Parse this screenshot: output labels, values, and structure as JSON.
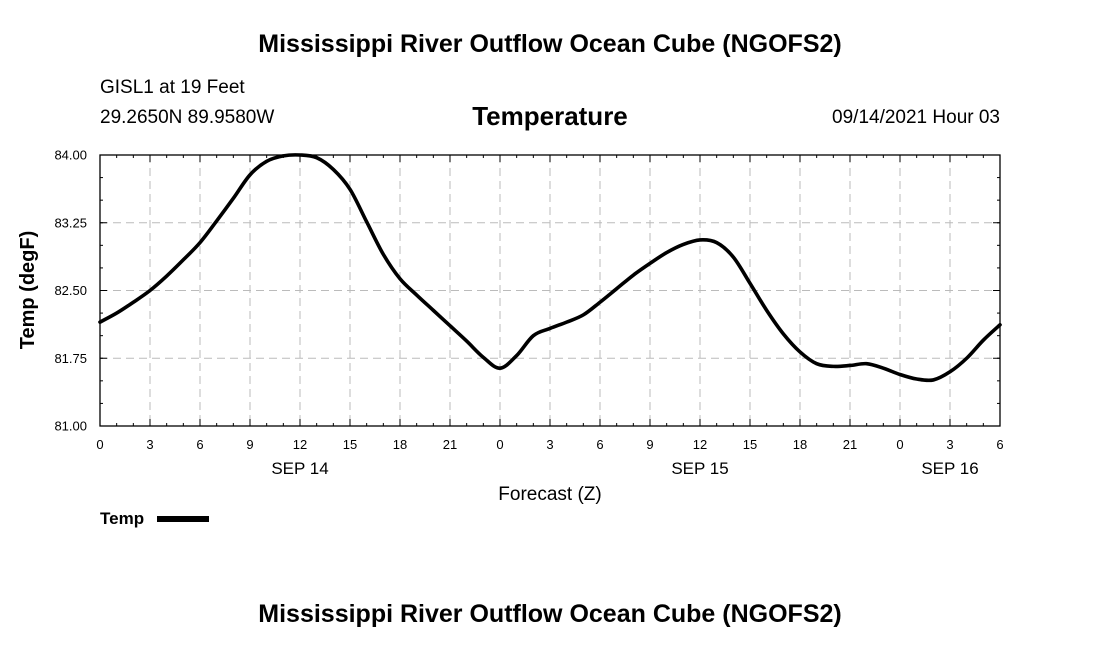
{
  "header": {
    "top_title": "Mississippi River Outflow Ocean Cube (NGOFS2)",
    "station": "GISL1 at 19 Feet",
    "location": "29.2650N  89.9580W",
    "variable": "Temperature",
    "datetime": "09/14/2021 Hour 03"
  },
  "footer": {
    "bottom_title": "Mississippi River Outflow Ocean Cube (NGOFS2)"
  },
  "legend": {
    "label": "Temp",
    "color": "#000000"
  },
  "chart_data": {
    "type": "line",
    "title": "Temperature",
    "xlabel": "Forecast (Z)",
    "ylabel": "Temp (degF)",
    "xlim": [
      0,
      54
    ],
    "ylim": [
      81.0,
      84.0
    ],
    "grid": true,
    "x_tick_values": [
      0,
      3,
      6,
      9,
      12,
      15,
      18,
      21,
      24,
      27,
      30,
      33,
      36,
      39,
      42,
      45,
      48,
      51,
      54
    ],
    "x_tick_labels": [
      "0",
      "3",
      "6",
      "9",
      "12",
      "15",
      "18",
      "21",
      "0",
      "3",
      "6",
      "9",
      "12",
      "15",
      "18",
      "21",
      "0",
      "3",
      "6"
    ],
    "y_tick_values": [
      81.0,
      81.75,
      82.5,
      83.25,
      84.0
    ],
    "y_tick_labels": [
      "81.00",
      "81.75",
      "82.50",
      "83.25",
      "84.00"
    ],
    "date_labels": [
      {
        "x": 12,
        "label": "SEP 14"
      },
      {
        "x": 36,
        "label": "SEP 15"
      },
      {
        "x": 51,
        "label": "SEP 16"
      }
    ],
    "series": [
      {
        "name": "Temp",
        "color": "#000000",
        "x": [
          0,
          1,
          2,
          3,
          4,
          5,
          6,
          7,
          8,
          9,
          10,
          11,
          12,
          13,
          14,
          15,
          16,
          17,
          18,
          19,
          20,
          21,
          22,
          23,
          24,
          25,
          26,
          27,
          28,
          29,
          30,
          31,
          32,
          33,
          34,
          35,
          36,
          37,
          38,
          39,
          40,
          41,
          42,
          43,
          44,
          45,
          46,
          47,
          48,
          49,
          50,
          51,
          52,
          53,
          54
        ],
        "values": [
          82.15,
          82.25,
          82.37,
          82.5,
          82.66,
          82.84,
          83.03,
          83.27,
          83.52,
          83.78,
          83.93,
          83.99,
          84.0,
          83.97,
          83.84,
          83.62,
          83.26,
          82.9,
          82.63,
          82.45,
          82.28,
          82.11,
          81.94,
          81.76,
          81.64,
          81.78,
          82.0,
          82.08,
          82.15,
          82.23,
          82.37,
          82.52,
          82.67,
          82.8,
          82.92,
          83.01,
          83.06,
          83.03,
          82.87,
          82.58,
          82.28,
          82.02,
          81.82,
          81.69,
          81.66,
          81.67,
          81.69,
          81.64,
          81.57,
          81.52,
          81.51,
          81.6,
          81.75,
          81.95,
          82.12
        ]
      }
    ]
  }
}
